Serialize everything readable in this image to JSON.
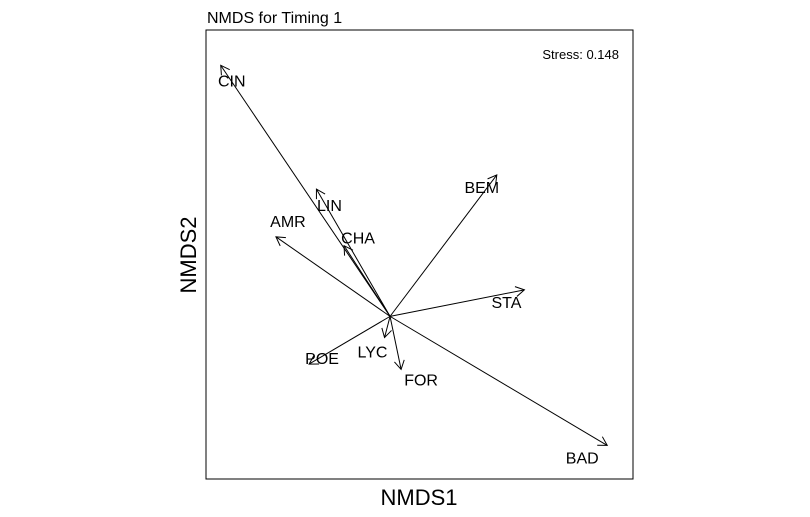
{
  "chart_data": {
    "type": "scatter",
    "title": "NMDS for Timing 1",
    "xlabel": "NMDS1",
    "ylabel": "NMDS2",
    "annotation": "Stress: 0.148",
    "xlim": [
      -1.0,
      1.32
    ],
    "ylim": [
      -0.92,
      1.62
    ],
    "grid": false,
    "origin": [
      0,
      0
    ],
    "vectors": [
      {
        "label": "CIN",
        "x": -0.92,
        "y": 1.42
      },
      {
        "label": "LIN",
        "x": -0.4,
        "y": 0.72
      },
      {
        "label": "BEM",
        "x": 0.58,
        "y": 0.8
      },
      {
        "label": "AMR",
        "x": -0.62,
        "y": 0.45
      },
      {
        "label": "CHA",
        "x": -0.25,
        "y": 0.4
      },
      {
        "label": "STA",
        "x": 0.73,
        "y": 0.15
      },
      {
        "label": "POE",
        "x": -0.44,
        "y": -0.27
      },
      {
        "label": "LYC",
        "x": -0.03,
        "y": -0.12
      },
      {
        "label": "FOR",
        "x": 0.06,
        "y": -0.3
      },
      {
        "label": "BAD",
        "x": 1.18,
        "y": -0.73
      }
    ]
  }
}
